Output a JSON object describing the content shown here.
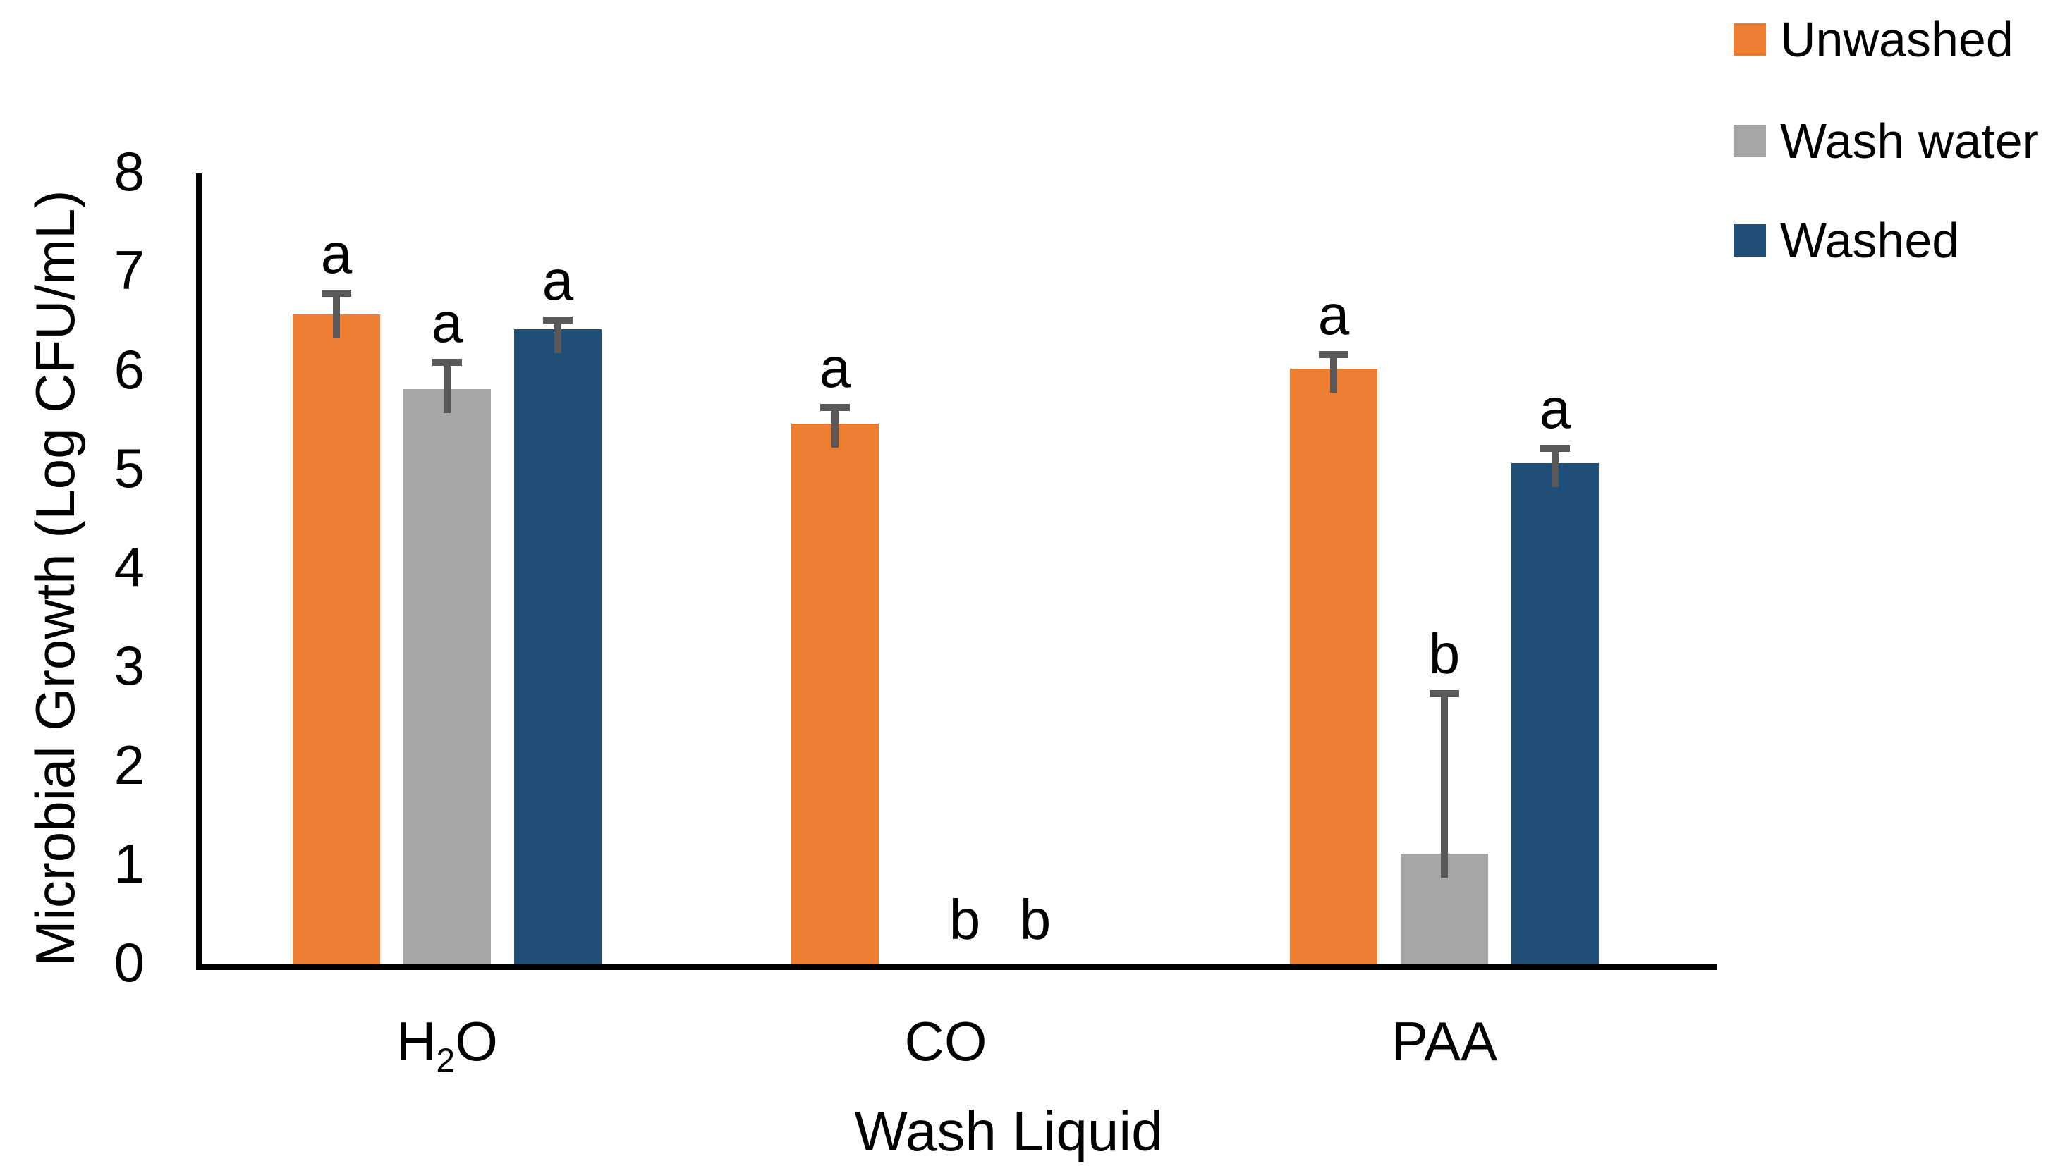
{
  "figure": {
    "background": "#FFFFFF"
  },
  "chart_data": {
    "type": "bar",
    "title": "",
    "xlabel": "Wash Liquid",
    "ylabel": "Microbial Growth (Log CFU/mL)",
    "categories": [
      "H₂O",
      "CO",
      "PAA"
    ],
    "series": [
      {
        "name": "Unwashed",
        "color": "#ED7D31",
        "values": [
          6.6,
          5.5,
          6.05
        ],
        "errors_up": [
          0.25,
          0.2,
          0.18
        ],
        "sig_letters": [
          "a",
          "a",
          "a"
        ],
        "letter_dx": [
          0,
          0,
          0
        ]
      },
      {
        "name": "Wash water",
        "color": "#A6A6A6",
        "values": [
          5.85,
          0,
          1.15
        ],
        "errors_up": [
          0.3,
          0,
          1.65
        ],
        "sig_letters": [
          "a",
          "b",
          "b"
        ],
        "letter_dx": [
          0,
          27,
          0
        ]
      },
      {
        "name": "Washed",
        "color": "#1F4E78",
        "values": [
          6.45,
          0,
          5.1
        ],
        "errors_up": [
          0.13,
          0,
          0.18
        ],
        "sig_letters": [
          "a",
          "b",
          "a"
        ],
        "letter_dx": [
          0,
          -30,
          0
        ]
      }
    ],
    "ylim": [
      0,
      8
    ],
    "yticks": [
      0,
      1,
      2,
      3,
      4,
      5,
      6,
      7,
      8
    ],
    "grid": false,
    "legend_position": "top-right",
    "error_bar_color": "#595959",
    "axis_color": "#000000"
  }
}
